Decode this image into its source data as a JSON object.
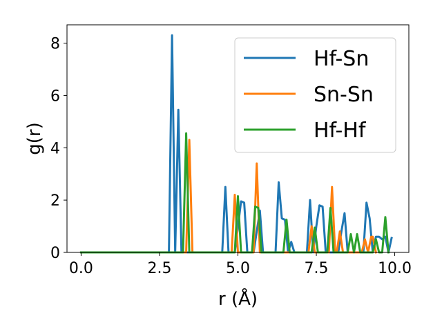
{
  "chart_data": {
    "type": "line",
    "title": "",
    "xlabel": "r (Å)",
    "ylabel": "g(r)",
    "xlim": [
      -0.45,
      10.45
    ],
    "ylim": [
      0,
      8.7
    ],
    "xticks": [
      "0.0",
      "2.5",
      "5.0",
      "7.5",
      "10.0"
    ],
    "yticks": [
      "0",
      "2",
      "4",
      "6",
      "8"
    ],
    "grid": false,
    "legend_position": "top-right",
    "series": [
      {
        "name": "Hf-Sn",
        "color": "#1f77b4",
        "x": [
          0,
          2.8,
          2.9,
          3.0,
          3.1,
          3.2,
          4.5,
          4.6,
          4.7,
          4.9,
          5.1,
          5.2,
          5.3,
          5.5,
          5.7,
          5.8,
          5.9,
          6.2,
          6.3,
          6.4,
          6.5,
          6.6,
          6.7,
          6.8,
          7.2,
          7.3,
          7.4,
          7.5,
          7.6,
          7.7,
          7.8,
          7.9,
          8.2,
          8.3,
          8.4,
          8.5,
          8.6,
          8.7,
          9.0,
          9.1,
          9.2,
          9.3,
          9.4,
          9.5,
          9.6,
          9.7,
          9.8,
          9.9
        ],
        "y": [
          0,
          0,
          8.3,
          0,
          5.45,
          0,
          0,
          2.5,
          0,
          0,
          1.95,
          1.9,
          0,
          0,
          1.6,
          0,
          0,
          0,
          2.68,
          1.3,
          1.25,
          0,
          0.4,
          0,
          0,
          2.0,
          0,
          1.0,
          1.8,
          1.75,
          0,
          0,
          0,
          0.8,
          1.5,
          0,
          0,
          0,
          0,
          1.9,
          1.3,
          0,
          0.6,
          0.6,
          0.5,
          0.6,
          0,
          0.55
        ]
      },
      {
        "name": "Sn-Sn",
        "color": "#ff7f0e",
        "x": [
          0,
          3.35,
          3.45,
          3.55,
          4.8,
          4.9,
          5.0,
          5.5,
          5.6,
          5.7,
          7.25,
          7.35,
          7.45,
          7.9,
          8.0,
          8.1,
          8.15,
          8.25,
          8.35,
          8.95,
          9.05,
          9.15,
          9.25,
          9.3,
          9.4
        ],
        "y": [
          0,
          0,
          4.3,
          0,
          0,
          2.2,
          0,
          0,
          3.4,
          0,
          0,
          1.0,
          0,
          0,
          2.5,
          0,
          0,
          0.8,
          0,
          0,
          0.5,
          0,
          0.6,
          0.6,
          0
        ]
      },
      {
        "name": "Hf-Hf",
        "color": "#2ca02c",
        "x": [
          0,
          3.25,
          3.35,
          3.45,
          4.9,
          5.0,
          5.1,
          5.45,
          5.55,
          5.65,
          5.75,
          5.85,
          6.45,
          6.55,
          6.65,
          7.35,
          7.45,
          7.55,
          7.85,
          7.95,
          8.05,
          8.5,
          8.6,
          8.7,
          8.8,
          8.9,
          9.3,
          9.4,
          9.5,
          9.6,
          9.7,
          9.8
        ],
        "y": [
          0,
          0,
          4.55,
          0,
          0,
          2.15,
          0,
          0,
          1.75,
          1.7,
          0,
          0,
          0,
          1.25,
          0,
          0,
          0.95,
          0,
          0,
          1.7,
          0,
          0,
          0.7,
          0,
          0.7,
          0,
          0,
          0.5,
          0,
          0,
          1.35,
          0
        ]
      }
    ]
  }
}
